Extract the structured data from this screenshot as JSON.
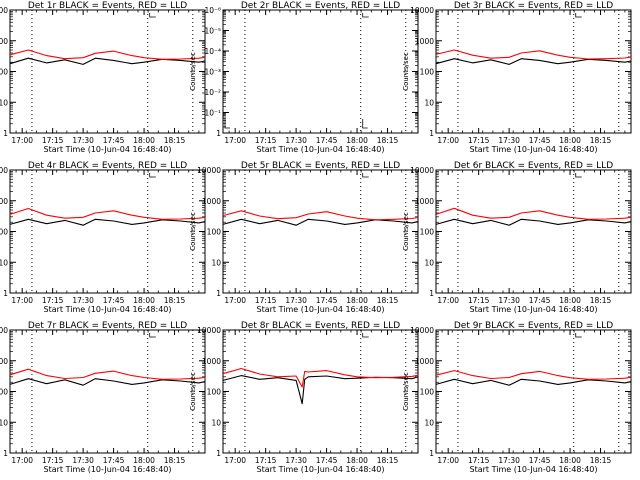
{
  "figure": {
    "xlabel": "Start Time (10-Jun-04 16:48:40)",
    "ylabel": "Counts/sec",
    "legend_text": "BLACK = Events, RED = LLD",
    "colors": {
      "events": "#000000",
      "lld": "#ff0000",
      "background": "#ffffff",
      "axis": "#000000"
    }
  },
  "chart_data": [
    {
      "type": "line",
      "title": "Det 1r BLACK = Events, RED = LLD",
      "xlabel": "Start Time (10-Jun-04 16:48:40)",
      "ylabel": "Counts/sec",
      "x_range_min": [
        16.9,
        18.5
      ],
      "x_ticks": [
        "17:00",
        "17:15",
        "17:30",
        "17:45",
        "18:00",
        "18:15"
      ],
      "y_scale": "log",
      "ylim": [
        1,
        10000
      ],
      "y_ticks": [
        "1",
        "10",
        "100",
        "1000",
        "10000"
      ],
      "vertical_markers_min": [
        17.08,
        18.03,
        18.4
      ],
      "series": [
        {
          "name": "Events",
          "color": "#000000",
          "x": [
            16.9,
            17.05,
            17.2,
            17.35,
            17.5,
            17.6,
            17.75,
            17.9,
            18.0,
            18.15,
            18.3,
            18.45,
            18.5
          ],
          "y": [
            180,
            270,
            190,
            240,
            170,
            270,
            230,
            180,
            200,
            250,
            230,
            200,
            220
          ]
        },
        {
          "name": "LLD",
          "color": "#ff0000",
          "x": [
            16.9,
            17.05,
            17.2,
            17.35,
            17.5,
            17.6,
            17.75,
            17.9,
            18.0,
            18.15,
            18.3,
            18.45,
            18.5
          ],
          "y": [
            350,
            500,
            330,
            260,
            280,
            390,
            460,
            330,
            280,
            250,
            255,
            270,
            290
          ]
        }
      ]
    },
    {
      "type": "line",
      "title": "Det 2r BLACK = Events, RED = LLD",
      "xlabel": "Start Time (10-Jun-04 16:48:40)",
      "ylabel": "Counts/sec",
      "x_range_min": [
        16.9,
        18.5
      ],
      "x_ticks": [
        "17:00",
        "17:15",
        "17:30",
        "17:45",
        "18:00",
        "18:15"
      ],
      "y_scale": "log",
      "ylim": [
        1,
        1e-06
      ],
      "y_ticks": [
        "1",
        "10⁻¹",
        "10⁻²",
        "10⁻³",
        "10⁻⁴",
        "10⁻⁵",
        "10⁻⁶"
      ],
      "vertical_markers_min": [
        17.08,
        18.03,
        18.4
      ],
      "series": []
    },
    {
      "type": "line",
      "title": "Det 3r BLACK = Events, RED = LLD",
      "xlabel": "Start Time (10-Jun-04 16:48:40)",
      "ylabel": "Counts/sec",
      "x_range_min": [
        16.9,
        18.5
      ],
      "x_ticks": [
        "17:00",
        "17:15",
        "17:30",
        "17:45",
        "18:00",
        "18:15"
      ],
      "y_scale": "log",
      "ylim": [
        1,
        10000
      ],
      "y_ticks": [
        "1",
        "10",
        "100",
        "1000",
        "10000"
      ],
      "vertical_markers_min": [
        17.08,
        18.03,
        18.4
      ],
      "series": [
        {
          "name": "Events",
          "color": "#000000",
          "x": [
            16.9,
            17.05,
            17.2,
            17.35,
            17.5,
            17.6,
            17.75,
            17.9,
            18.0,
            18.15,
            18.3,
            18.45,
            18.5
          ],
          "y": [
            180,
            260,
            190,
            240,
            170,
            260,
            230,
            180,
            200,
            250,
            230,
            200,
            220
          ]
        },
        {
          "name": "LLD",
          "color": "#ff0000",
          "x": [
            16.9,
            17.05,
            17.2,
            17.35,
            17.5,
            17.6,
            17.75,
            17.9,
            18.0,
            18.15,
            18.3,
            18.45,
            18.5
          ],
          "y": [
            360,
            500,
            340,
            270,
            290,
            400,
            470,
            340,
            290,
            255,
            260,
            275,
            295
          ]
        }
      ]
    },
    {
      "type": "line",
      "title": "Det 4r BLACK = Events, RED = LLD",
      "xlabel": "Start Time (10-Jun-04 16:48:40)",
      "ylabel": "Counts/sec",
      "x_range_min": [
        16.9,
        18.5
      ],
      "x_ticks": [
        "17:00",
        "17:15",
        "17:30",
        "17:45",
        "18:00",
        "18:15"
      ],
      "y_scale": "log",
      "ylim": [
        1,
        10000
      ],
      "y_ticks": [
        "1",
        "10",
        "100",
        "1000",
        "10000"
      ],
      "vertical_markers_min": [
        17.08,
        18.03,
        18.4
      ],
      "series": [
        {
          "name": "Events",
          "color": "#000000",
          "x": [
            16.9,
            17.05,
            17.2,
            17.35,
            17.5,
            17.6,
            17.75,
            17.9,
            18.0,
            18.15,
            18.3,
            18.45,
            18.5
          ],
          "y": [
            170,
            250,
            180,
            230,
            160,
            250,
            220,
            170,
            190,
            240,
            220,
            190,
            210
          ]
        },
        {
          "name": "LLD",
          "color": "#ff0000",
          "x": [
            16.9,
            17.05,
            17.2,
            17.35,
            17.5,
            17.6,
            17.75,
            17.9,
            18.0,
            18.15,
            18.3,
            18.45,
            18.5
          ],
          "y": [
            360,
            560,
            340,
            270,
            290,
            400,
            470,
            340,
            290,
            250,
            255,
            270,
            290
          ]
        }
      ]
    },
    {
      "type": "line",
      "title": "Det 5r BLACK = Events, RED = LLD",
      "xlabel": "Start Time (10-Jun-04 16:48:40)",
      "ylabel": "Counts/sec",
      "x_range_min": [
        16.9,
        18.5
      ],
      "x_ticks": [
        "17:00",
        "17:15",
        "17:30",
        "17:45",
        "18:00",
        "18:15"
      ],
      "y_scale": "log",
      "ylim": [
        1,
        10000
      ],
      "y_ticks": [
        "1",
        "10",
        "100",
        "1000",
        "10000"
      ],
      "vertical_markers_min": [
        17.08,
        18.03,
        18.4
      ],
      "series": [
        {
          "name": "Events",
          "color": "#000000",
          "x": [
            16.9,
            17.05,
            17.2,
            17.35,
            17.5,
            17.6,
            17.75,
            17.9,
            18.0,
            18.15,
            18.3,
            18.45,
            18.5
          ],
          "y": [
            170,
            250,
            180,
            230,
            160,
            250,
            220,
            170,
            190,
            240,
            220,
            190,
            210
          ]
        },
        {
          "name": "LLD",
          "color": "#ff0000",
          "x": [
            16.9,
            17.05,
            17.2,
            17.35,
            17.5,
            17.6,
            17.75,
            17.9,
            18.0,
            18.15,
            18.3,
            18.45,
            18.5
          ],
          "y": [
            330,
            470,
            320,
            260,
            280,
            370,
            440,
            320,
            270,
            240,
            250,
            265,
            285
          ]
        }
      ]
    },
    {
      "type": "line",
      "title": "Det 6r BLACK = Events, RED = LLD",
      "xlabel": "Start Time (10-Jun-04 16:48:40)",
      "ylabel": "Counts/sec",
      "x_range_min": [
        16.9,
        18.5
      ],
      "x_ticks": [
        "17:00",
        "17:15",
        "17:30",
        "17:45",
        "18:00",
        "18:15"
      ],
      "y_scale": "log",
      "ylim": [
        1,
        10000
      ],
      "y_ticks": [
        "1",
        "10",
        "100",
        "1000",
        "10000"
      ],
      "vertical_markers_min": [
        17.08,
        18.03,
        18.4
      ],
      "series": [
        {
          "name": "Events",
          "color": "#000000",
          "x": [
            16.9,
            17.05,
            17.2,
            17.35,
            17.5,
            17.6,
            17.75,
            17.9,
            18.0,
            18.15,
            18.3,
            18.45,
            18.5
          ],
          "y": [
            170,
            250,
            180,
            230,
            160,
            250,
            220,
            170,
            190,
            240,
            220,
            190,
            210
          ]
        },
        {
          "name": "LLD",
          "color": "#ff0000",
          "x": [
            16.9,
            17.05,
            17.2,
            17.35,
            17.5,
            17.6,
            17.75,
            17.9,
            18.0,
            18.15,
            18.3,
            18.45,
            18.5
          ],
          "y": [
            360,
            570,
            340,
            270,
            290,
            400,
            470,
            340,
            290,
            250,
            255,
            270,
            290
          ]
        }
      ]
    },
    {
      "type": "line",
      "title": "Det 7r BLACK = Events, RED = LLD",
      "xlabel": "Start Time (10-Jun-04 16:48:40)",
      "ylabel": "Counts/sec",
      "x_range_min": [
        16.9,
        18.5
      ],
      "x_ticks": [
        "17:00",
        "17:15",
        "17:30",
        "17:45",
        "18:00",
        "18:15"
      ],
      "y_scale": "log",
      "ylim": [
        1,
        10000
      ],
      "y_ticks": [
        "1",
        "10",
        "100",
        "1000",
        "10000"
      ],
      "vertical_markers_min": [
        17.08,
        18.03,
        18.4
      ],
      "series": [
        {
          "name": "Events",
          "color": "#000000",
          "x": [
            16.9,
            17.05,
            17.2,
            17.35,
            17.5,
            17.6,
            17.75,
            17.9,
            18.0,
            18.15,
            18.3,
            18.45,
            18.5
          ],
          "y": [
            170,
            260,
            180,
            240,
            160,
            260,
            220,
            170,
            190,
            240,
            220,
            190,
            210
          ]
        },
        {
          "name": "LLD",
          "color": "#ff0000",
          "x": [
            16.9,
            17.05,
            17.2,
            17.35,
            17.5,
            17.6,
            17.75,
            17.9,
            18.0,
            18.15,
            18.3,
            18.45,
            18.5
          ],
          "y": [
            350,
            530,
            330,
            265,
            285,
            390,
            460,
            330,
            285,
            250,
            255,
            270,
            290
          ]
        }
      ]
    },
    {
      "type": "line",
      "title": "Det 8r BLACK = Events, RED = LLD",
      "xlabel": "Start Time (10-Jun-04 16:48:40)",
      "ylabel": "Counts/sec",
      "x_range_min": [
        16.9,
        18.5
      ],
      "x_ticks": [
        "17:00",
        "17:15",
        "17:30",
        "17:45",
        "18:00",
        "18:15"
      ],
      "y_scale": "log",
      "ylim": [
        1,
        10000
      ],
      "y_ticks": [
        "1",
        "10",
        "100",
        "1000",
        "10000"
      ],
      "vertical_markers_min": [
        17.08,
        18.03,
        18.4
      ],
      "series": [
        {
          "name": "Events",
          "color": "#000000",
          "x": [
            16.9,
            17.05,
            17.2,
            17.35,
            17.5,
            17.55,
            17.57,
            17.6,
            17.75,
            17.9,
            18.0,
            18.15,
            18.3,
            18.45,
            18.5
          ],
          "y": [
            230,
            330,
            250,
            280,
            230,
            40,
            250,
            300,
            320,
            260,
            270,
            290,
            280,
            260,
            300
          ]
        },
        {
          "name": "LLD",
          "color": "#ff0000",
          "x": [
            16.9,
            17.05,
            17.2,
            17.35,
            17.5,
            17.55,
            17.57,
            17.6,
            17.75,
            17.9,
            18.0,
            18.15,
            18.3,
            18.45,
            18.5
          ],
          "y": [
            380,
            560,
            370,
            300,
            320,
            140,
            450,
            430,
            480,
            350,
            300,
            280,
            290,
            310,
            340
          ]
        }
      ]
    },
    {
      "type": "line",
      "title": "Det 9r BLACK = Events, RED = LLD",
      "xlabel": "Start Time (10-Jun-04 16:48:40)",
      "ylabel": "Counts/sec",
      "x_range_min": [
        16.9,
        18.5
      ],
      "x_ticks": [
        "17:00",
        "17:15",
        "17:30",
        "17:45",
        "18:00",
        "18:15"
      ],
      "y_scale": "log",
      "ylim": [
        1,
        10000
      ],
      "y_ticks": [
        "1",
        "10",
        "100",
        "1000",
        "10000"
      ],
      "vertical_markers_min": [
        17.08,
        18.03,
        18.4
      ],
      "series": [
        {
          "name": "Events",
          "color": "#000000",
          "x": [
            16.9,
            17.05,
            17.2,
            17.35,
            17.5,
            17.6,
            17.75,
            17.9,
            18.0,
            18.15,
            18.3,
            18.45,
            18.5
          ],
          "y": [
            170,
            250,
            180,
            230,
            160,
            250,
            220,
            170,
            190,
            240,
            220,
            190,
            210
          ]
        },
        {
          "name": "LLD",
          "color": "#ff0000",
          "x": [
            16.9,
            17.05,
            17.2,
            17.35,
            17.5,
            17.6,
            17.75,
            17.9,
            18.0,
            18.15,
            18.3,
            18.45,
            18.5
          ],
          "y": [
            340,
            480,
            330,
            265,
            285,
            380,
            450,
            330,
            280,
            250,
            255,
            270,
            290
          ]
        }
      ]
    }
  ]
}
